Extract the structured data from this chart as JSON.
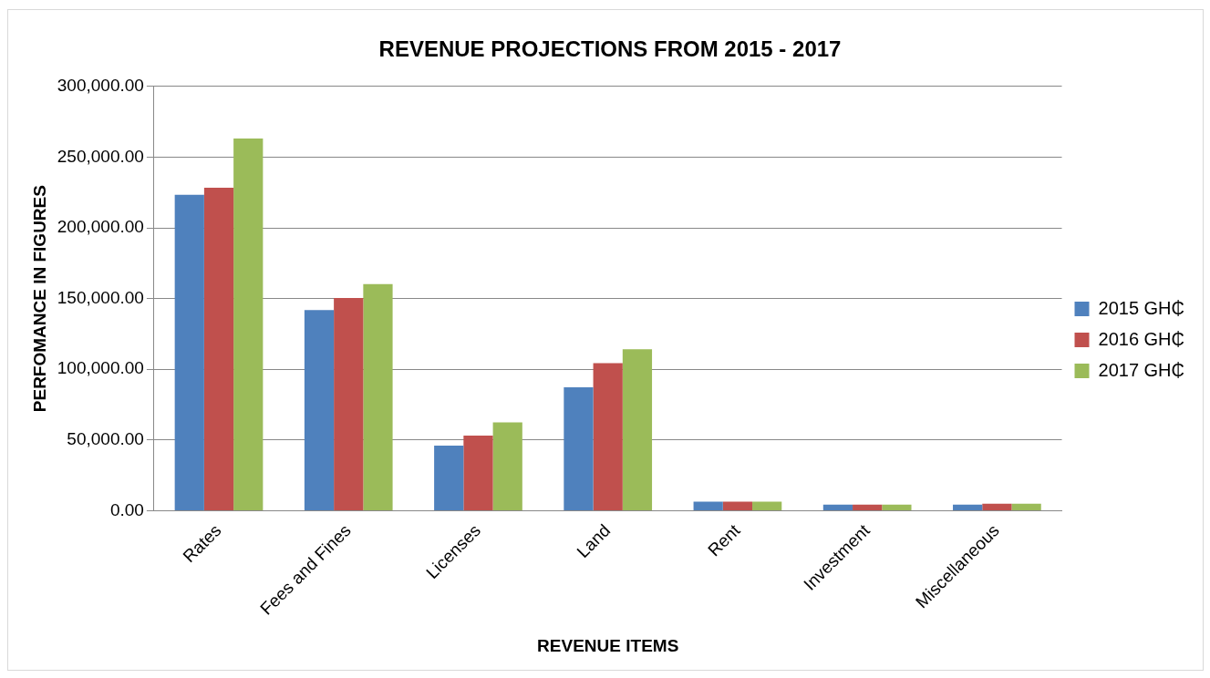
{
  "chart_data": {
    "type": "bar",
    "title": "REVENUE PROJECTIONS FROM 2015 - 2017",
    "xlabel": "REVENUE ITEMS",
    "ylabel": "PERFOMANCE IN FIGURES",
    "categories": [
      "Rates",
      "Fees and Fines",
      "Licenses",
      "Land",
      "Rent",
      "Investment",
      "Miscellaneous"
    ],
    "series": [
      {
        "name": "2015 GH₵",
        "color": "#4f81bd",
        "values": [
          223400,
          141800,
          46100,
          87200,
          6400,
          4300,
          4300
        ]
      },
      {
        "name": "2016 GH₵",
        "color": "#c0504d",
        "values": [
          228400,
          150400,
          53200,
          104300,
          6400,
          4300,
          5000
        ]
      },
      {
        "name": "2017 GH₵",
        "color": "#9bbb59",
        "values": [
          263100,
          160300,
          62400,
          114200,
          6400,
          4300,
          5000
        ]
      }
    ],
    "ylim": [
      0,
      300000
    ],
    "yticks": [
      {
        "value": 0,
        "label": "0.00"
      },
      {
        "value": 50000,
        "label": "50,000.00"
      },
      {
        "value": 100000,
        "label": "100,000.00"
      },
      {
        "value": 150000,
        "label": "150,000.00"
      },
      {
        "value": 200000,
        "label": "200,000.00"
      },
      {
        "value": 250000,
        "label": "250,000.00"
      },
      {
        "value": 300000,
        "label": "300,000.00"
      }
    ],
    "grid": "y",
    "legend": "right"
  }
}
